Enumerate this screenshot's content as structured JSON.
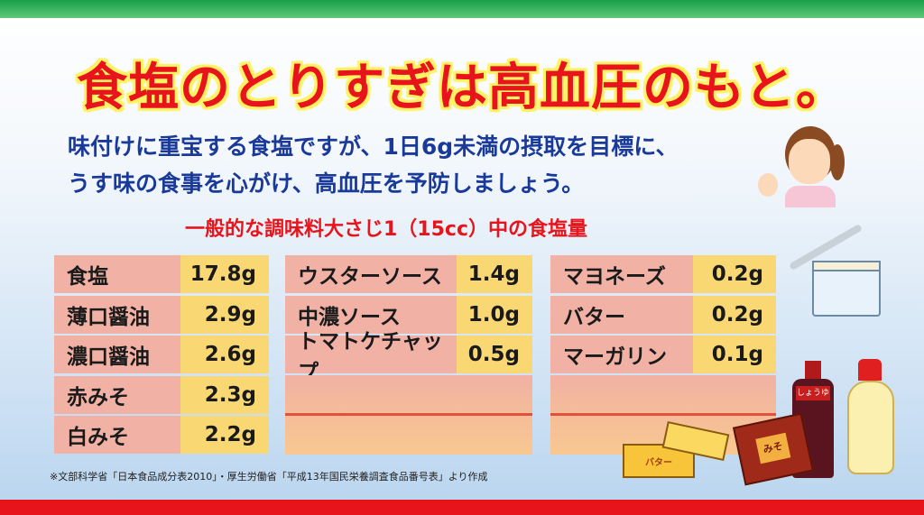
{
  "title": "食塩のとりすぎは高血圧のもと。",
  "subtitle": [
    "味付けに重宝する食塩ですが、1日6g未満の摂取を目標に、",
    "うす味の食事を心がけ、高血圧を予防しましょう。"
  ],
  "table_heading": "一般的な調味料大さじ1（15cc）中の食塩量",
  "columns": [
    [
      {
        "name": "食塩",
        "value": "17.8g"
      },
      {
        "name": "薄口醤油",
        "value": "2.9g"
      },
      {
        "name": "濃口醤油",
        "value": "2.6g"
      },
      {
        "name": "赤みそ",
        "value": "2.3g"
      },
      {
        "name": "白みそ",
        "value": "2.2g"
      }
    ],
    [
      {
        "name": "ウスターソース",
        "value": "1.4g"
      },
      {
        "name": "中濃ソース",
        "value": "1.0g"
      },
      {
        "name": "トマトケチャップ",
        "value": "0.5g"
      }
    ],
    [
      {
        "name": "マヨネーズ",
        "value": "0.2g"
      },
      {
        "name": "バター",
        "value": "0.2g"
      },
      {
        "name": "マーガリン",
        "value": "0.1g"
      }
    ]
  ],
  "footnote": "※文部科学省「日本食品成分表2010」・厚生労働省「平成13年国民栄養調査食品番号表」より作成",
  "labels": {
    "soy_sauce": "しょうゆ",
    "butter": "バター",
    "miso": "みそ"
  },
  "colors": {
    "title": "#e8141c",
    "subtitle": "#1a3a9a",
    "name_cell": "#f1b1a4",
    "value_cell": "#f9d874",
    "top_bar": "#1aa04a",
    "bottom_bar": "#e8141c"
  }
}
